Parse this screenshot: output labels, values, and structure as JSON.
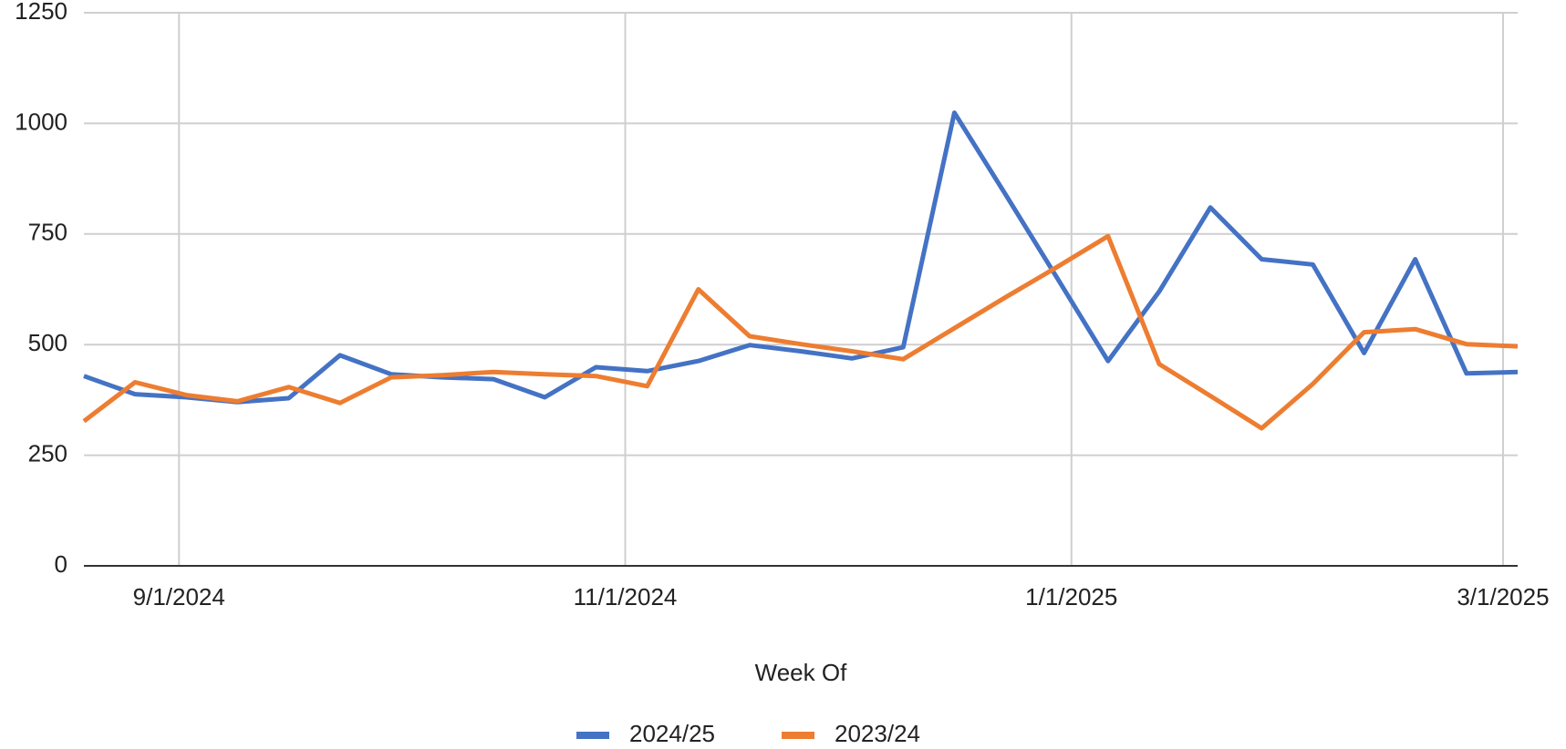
{
  "chart_data": {
    "type": "line",
    "x_label": "Week Of",
    "x": [
      "8/19/2024",
      "8/26/2024",
      "9/2/2024",
      "9/9/2024",
      "9/16/2024",
      "9/23/2024",
      "9/30/2024",
      "10/7/2024",
      "10/14/2024",
      "10/21/2024",
      "10/28/2024",
      "11/4/2024",
      "11/11/2024",
      "11/18/2024",
      "11/25/2024",
      "12/2/2024",
      "12/9/2024",
      "12/16/2024",
      "12/23/2024",
      "12/30/2024",
      "1/6/2025",
      "1/13/2025",
      "1/20/2025",
      "1/27/2025",
      "2/3/2025",
      "2/10/2025",
      "2/17/2025",
      "2/24/2025",
      "3/3/2025"
    ],
    "series": [
      {
        "name": "2024/25",
        "color": "#4472c4",
        "values": [
          429,
          388,
          381,
          370,
          379,
          476,
          433,
          426,
          422,
          381,
          449,
          440,
          463,
          499,
          485,
          469,
          494,
          1024,
          839,
          652,
          463,
          620,
          810,
          693,
          681,
          481,
          693,
          435,
          438
        ]
      },
      {
        "name": "2023/24",
        "color": "#ed7d31",
        "values": [
          327,
          415,
          386,
          372,
          404,
          368,
          426,
          431,
          438,
          433,
          429,
          406,
          625,
          519,
          501,
          485,
          467,
          537,
          607,
          675,
          745,
          456,
          384,
          311,
          411,
          528,
          535,
          501,
          496
        ]
      }
    ],
    "xlim": [
      "8/19/2024",
      "3/3/2025"
    ],
    "xticks": [
      "9/1/2024",
      "11/1/2024",
      "1/1/2025",
      "3/1/2025"
    ],
    "ylim": [
      0,
      1250
    ],
    "yticks": [
      0,
      250,
      500,
      750,
      1000,
      1250
    ],
    "grid": true,
    "legend": "bottom"
  }
}
